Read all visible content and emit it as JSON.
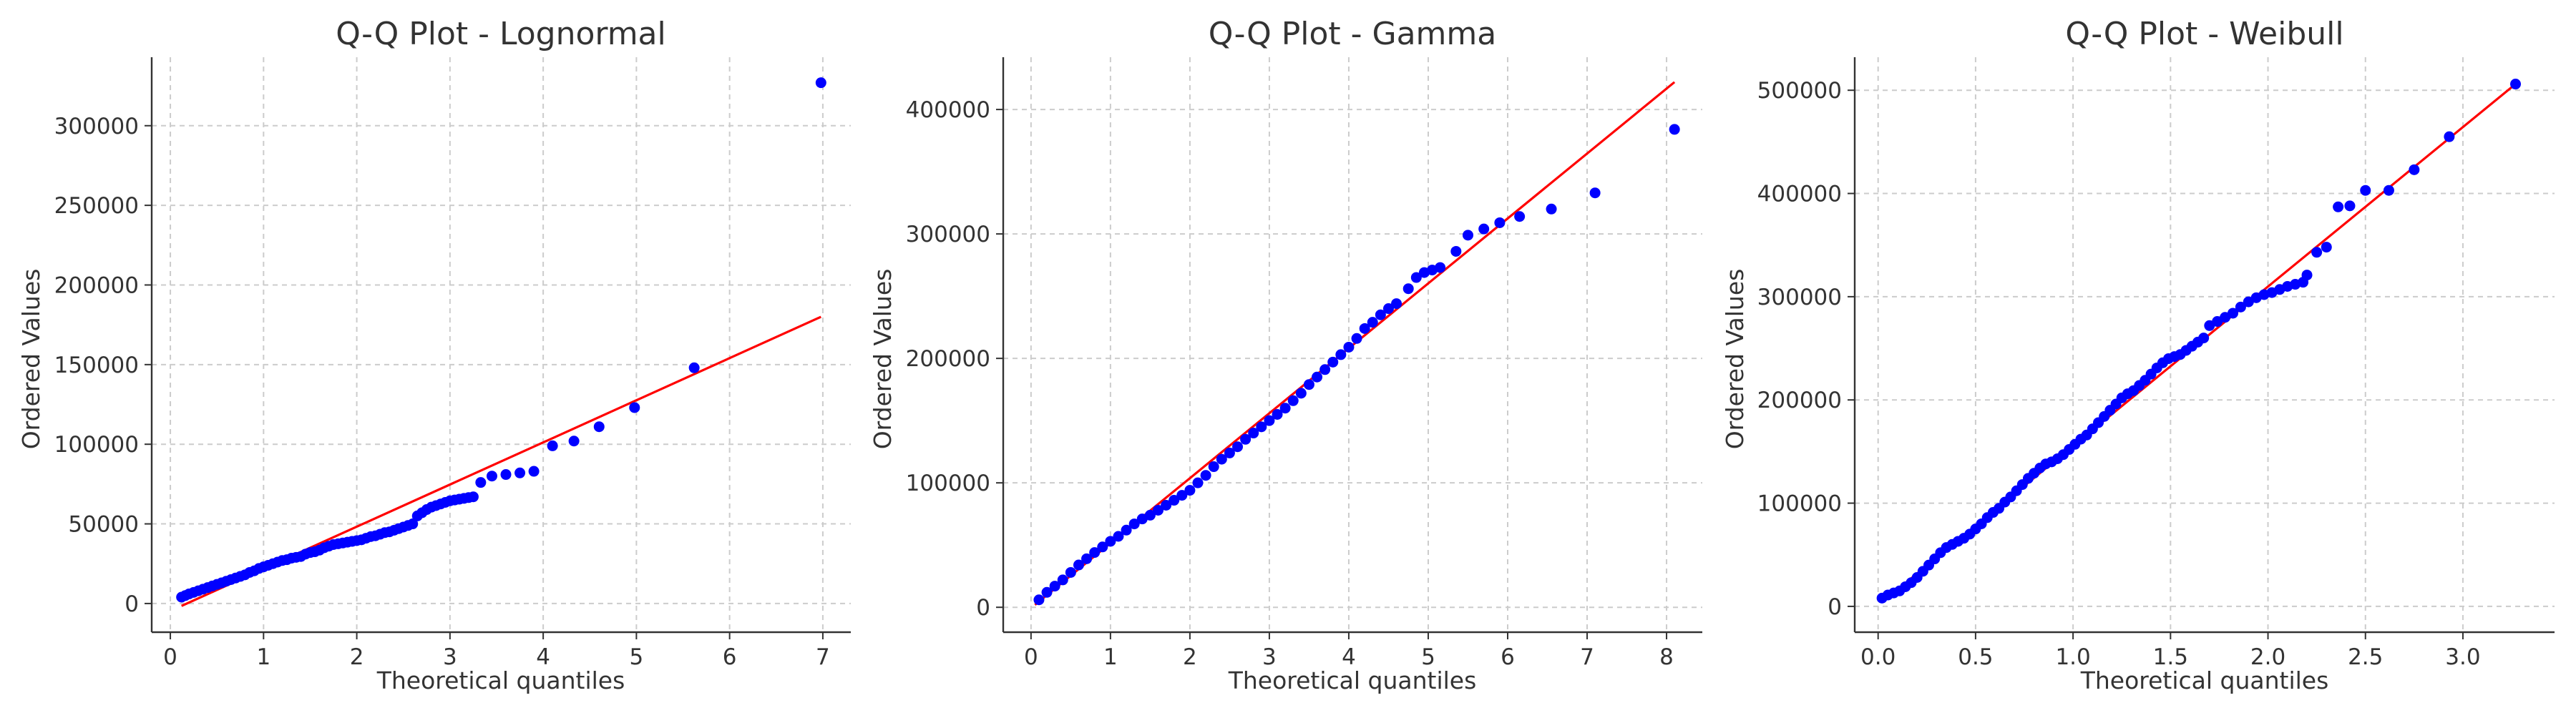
{
  "colors": {
    "points": "#0000ff",
    "fit_line": "#ff0000",
    "grid": "#cccccc",
    "text": "#333333"
  },
  "chart_data": [
    {
      "type": "scatter",
      "title": "Q-Q Plot - Lognormal",
      "xlabel": "Theoretical quantiles",
      "ylabel": "Ordered Values",
      "xlim": [
        -0.2,
        7.3
      ],
      "ylim": [
        -18000,
        343000
      ],
      "xticks": [
        0,
        1,
        2,
        3,
        4,
        5,
        6,
        7
      ],
      "yticks": [
        0,
        50000,
        100000,
        150000,
        200000,
        250000,
        300000
      ],
      "grid": true,
      "fit_line": {
        "x": [
          0.12,
          6.98
        ],
        "y": [
          -1500,
          180000
        ]
      },
      "points": [
        [
          0.12,
          4000
        ],
        [
          0.16,
          5000
        ],
        [
          0.2,
          6000
        ],
        [
          0.25,
          7000
        ],
        [
          0.3,
          8000
        ],
        [
          0.35,
          9000
        ],
        [
          0.4,
          10000
        ],
        [
          0.45,
          11000
        ],
        [
          0.5,
          12000
        ],
        [
          0.55,
          13000
        ],
        [
          0.6,
          14000
        ],
        [
          0.65,
          15000
        ],
        [
          0.7,
          16000
        ],
        [
          0.75,
          17000
        ],
        [
          0.8,
          18000
        ],
        [
          0.85,
          19500
        ],
        [
          0.9,
          20500
        ],
        [
          0.95,
          22000
        ],
        [
          1.0,
          23000
        ],
        [
          1.05,
          24000
        ],
        [
          1.1,
          25000
        ],
        [
          1.15,
          26000
        ],
        [
          1.2,
          27000
        ],
        [
          1.25,
          27500
        ],
        [
          1.3,
          28500
        ],
        [
          1.35,
          29000
        ],
        [
          1.4,
          29500
        ],
        [
          1.45,
          31000
        ],
        [
          1.5,
          32000
        ],
        [
          1.55,
          32500
        ],
        [
          1.6,
          33500
        ],
        [
          1.65,
          35000
        ],
        [
          1.7,
          36000
        ],
        [
          1.75,
          37000
        ],
        [
          1.8,
          37500
        ],
        [
          1.85,
          38000
        ],
        [
          1.9,
          38500
        ],
        [
          1.95,
          39000
        ],
        [
          2.0,
          39500
        ],
        [
          2.05,
          40000
        ],
        [
          2.1,
          41000
        ],
        [
          2.15,
          42000
        ],
        [
          2.2,
          42500
        ],
        [
          2.25,
          43500
        ],
        [
          2.3,
          44500
        ],
        [
          2.35,
          45000
        ],
        [
          2.4,
          46000
        ],
        [
          2.45,
          47000
        ],
        [
          2.5,
          48000
        ],
        [
          2.55,
          49000
        ],
        [
          2.6,
          50000
        ],
        [
          2.65,
          55000
        ],
        [
          2.7,
          57000
        ],
        [
          2.75,
          59000
        ],
        [
          2.8,
          60500
        ],
        [
          2.85,
          61500
        ],
        [
          2.9,
          62500
        ],
        [
          2.95,
          63500
        ],
        [
          3.0,
          64500
        ],
        [
          3.05,
          65000
        ],
        [
          3.1,
          65500
        ],
        [
          3.15,
          66000
        ],
        [
          3.2,
          66500
        ],
        [
          3.25,
          67000
        ],
        [
          3.33,
          76000
        ],
        [
          3.45,
          80000
        ],
        [
          3.6,
          81000
        ],
        [
          3.75,
          82000
        ],
        [
          3.9,
          83000
        ],
        [
          4.1,
          99000
        ],
        [
          4.33,
          102000
        ],
        [
          4.6,
          111000
        ],
        [
          4.98,
          123000
        ],
        [
          5.62,
          148000
        ],
        [
          6.98,
          327000
        ]
      ]
    },
    {
      "type": "scatter",
      "title": "Q-Q Plot - Gamma",
      "xlabel": "Theoretical quantiles",
      "ylabel": "Ordered Values",
      "xlim": [
        -0.35,
        8.45
      ],
      "ylim": [
        -20000,
        442000
      ],
      "xticks": [
        0,
        1,
        2,
        3,
        4,
        5,
        6,
        7,
        8
      ],
      "yticks": [
        0,
        100000,
        200000,
        300000,
        400000
      ],
      "grid": true,
      "fit_line": {
        "x": [
          0.05,
          8.1
        ],
        "y": [
          2000,
          422000
        ]
      },
      "points": [
        [
          0.1,
          6000
        ],
        [
          0.2,
          12000
        ],
        [
          0.3,
          17000
        ],
        [
          0.4,
          22000
        ],
        [
          0.5,
          28000
        ],
        [
          0.6,
          34000
        ],
        [
          0.7,
          39000
        ],
        [
          0.8,
          44000
        ],
        [
          0.9,
          48500
        ],
        [
          1.0,
          53000
        ],
        [
          1.1,
          57000
        ],
        [
          1.2,
          62000
        ],
        [
          1.3,
          67000
        ],
        [
          1.4,
          71000
        ],
        [
          1.5,
          74000
        ],
        [
          1.6,
          78000
        ],
        [
          1.7,
          82000
        ],
        [
          1.8,
          86000
        ],
        [
          1.9,
          90000
        ],
        [
          2.0,
          94000
        ],
        [
          2.1,
          100000
        ],
        [
          2.2,
          106000
        ],
        [
          2.3,
          113000
        ],
        [
          2.4,
          119000
        ],
        [
          2.5,
          124000
        ],
        [
          2.6,
          129000
        ],
        [
          2.7,
          135000
        ],
        [
          2.8,
          140000
        ],
        [
          2.9,
          145000
        ],
        [
          3.0,
          150000
        ],
        [
          3.1,
          155000
        ],
        [
          3.2,
          160000
        ],
        [
          3.3,
          166000
        ],
        [
          3.4,
          172000
        ],
        [
          3.5,
          179000
        ],
        [
          3.6,
          185000
        ],
        [
          3.7,
          191000
        ],
        [
          3.8,
          197000
        ],
        [
          3.9,
          203000
        ],
        [
          4.0,
          209000
        ],
        [
          4.1,
          216000
        ],
        [
          4.2,
          224000
        ],
        [
          4.3,
          229000
        ],
        [
          4.4,
          235000
        ],
        [
          4.5,
          240000
        ],
        [
          4.6,
          244000
        ],
        [
          4.75,
          256000
        ],
        [
          4.85,
          265000
        ],
        [
          4.95,
          269000
        ],
        [
          5.05,
          271000
        ],
        [
          5.15,
          273000
        ],
        [
          5.35,
          286000
        ],
        [
          5.5,
          299000
        ],
        [
          5.7,
          304000
        ],
        [
          5.9,
          309000
        ],
        [
          6.15,
          314000
        ],
        [
          6.55,
          320000
        ],
        [
          7.1,
          333000
        ],
        [
          8.1,
          384000
        ]
      ]
    },
    {
      "type": "scatter",
      "title": "Q-Q Plot - Weibull",
      "xlabel": "Theoretical quantiles",
      "ylabel": "Ordered Values",
      "xlim": [
        -0.12,
        3.47
      ],
      "ylim": [
        -25000,
        532000
      ],
      "xticks": [
        0.0,
        0.5,
        1.0,
        1.5,
        2.0,
        2.5,
        3.0
      ],
      "yticks": [
        0,
        100000,
        200000,
        300000,
        400000,
        500000
      ],
      "grid": true,
      "fit_line": {
        "x": [
          0.02,
          3.27
        ],
        "y": [
          4000,
          506000
        ]
      },
      "points": [
        [
          0.02,
          8000
        ],
        [
          0.05,
          11000
        ],
        [
          0.08,
          13000
        ],
        [
          0.11,
          15000
        ],
        [
          0.14,
          19000
        ],
        [
          0.17,
          23000
        ],
        [
          0.2,
          28000
        ],
        [
          0.23,
          34000
        ],
        [
          0.26,
          40000
        ],
        [
          0.29,
          46000
        ],
        [
          0.32,
          52000
        ],
        [
          0.35,
          57000
        ],
        [
          0.38,
          60000
        ],
        [
          0.41,
          63000
        ],
        [
          0.44,
          66000
        ],
        [
          0.47,
          70000
        ],
        [
          0.5,
          75000
        ],
        [
          0.53,
          80000
        ],
        [
          0.56,
          86000
        ],
        [
          0.59,
          91000
        ],
        [
          0.62,
          95000
        ],
        [
          0.65,
          101000
        ],
        [
          0.68,
          106000
        ],
        [
          0.71,
          112000
        ],
        [
          0.74,
          118000
        ],
        [
          0.77,
          124000
        ],
        [
          0.8,
          129000
        ],
        [
          0.83,
          134000
        ],
        [
          0.86,
          138000
        ],
        [
          0.89,
          140000
        ],
        [
          0.92,
          143000
        ],
        [
          0.95,
          147000
        ],
        [
          0.98,
          152000
        ],
        [
          1.01,
          157000
        ],
        [
          1.04,
          162000
        ],
        [
          1.07,
          166000
        ],
        [
          1.1,
          172000
        ],
        [
          1.13,
          178000
        ],
        [
          1.16,
          184000
        ],
        [
          1.19,
          190000
        ],
        [
          1.22,
          196000
        ],
        [
          1.25,
          202000
        ],
        [
          1.28,
          206000
        ],
        [
          1.31,
          209000
        ],
        [
          1.34,
          214000
        ],
        [
          1.37,
          219000
        ],
        [
          1.4,
          225000
        ],
        [
          1.43,
          231000
        ],
        [
          1.46,
          236000
        ],
        [
          1.49,
          240000
        ],
        [
          1.52,
          242000
        ],
        [
          1.55,
          244000
        ],
        [
          1.58,
          248000
        ],
        [
          1.61,
          252000
        ],
        [
          1.64,
          256000
        ],
        [
          1.67,
          260000
        ],
        [
          1.7,
          272000
        ],
        [
          1.74,
          276000
        ],
        [
          1.78,
          280000
        ],
        [
          1.82,
          284000
        ],
        [
          1.86,
          290000
        ],
        [
          1.9,
          295000
        ],
        [
          1.94,
          299000
        ],
        [
          1.98,
          302000
        ],
        [
          2.02,
          304000
        ],
        [
          2.06,
          307000
        ],
        [
          2.1,
          310000
        ],
        [
          2.14,
          312000
        ],
        [
          2.18,
          314000
        ],
        [
          2.2,
          321000
        ],
        [
          2.25,
          343000
        ],
        [
          2.3,
          348000
        ],
        [
          2.36,
          387000
        ],
        [
          2.42,
          388000
        ],
        [
          2.5,
          403000
        ],
        [
          2.62,
          403000
        ],
        [
          2.75,
          423000
        ],
        [
          2.93,
          455000
        ],
        [
          3.27,
          506000
        ]
      ]
    }
  ]
}
